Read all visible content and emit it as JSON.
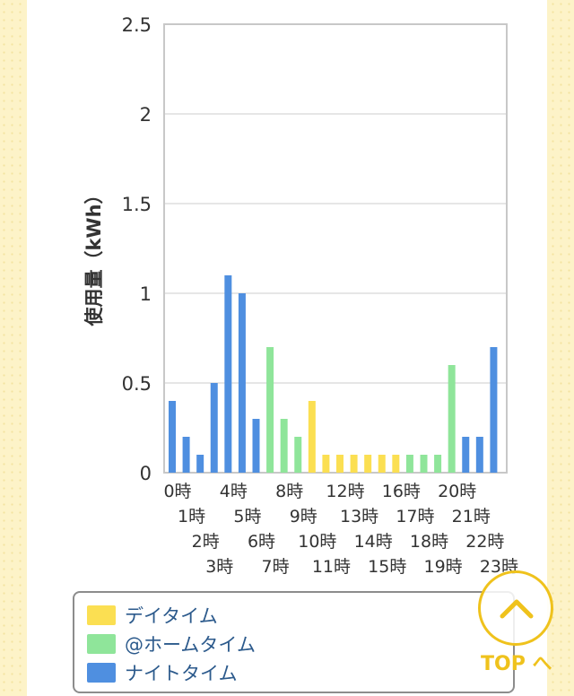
{
  "chart_data": {
    "type": "bar",
    "ylabel": "使用量（kWh）",
    "ylim": [
      0,
      2.5
    ],
    "yticks": [
      "0",
      "0.5",
      "1",
      "1.5",
      "2",
      "2.5"
    ],
    "ytick_values": [
      0,
      0.5,
      1,
      1.5,
      2,
      2.5
    ],
    "grid": true,
    "categories": [
      "0時",
      "1時",
      "2時",
      "3時",
      "4時",
      "5時",
      "6時",
      "7時",
      "8時",
      "9時",
      "10時",
      "11時",
      "12時",
      "13時",
      "14時",
      "15時",
      "16時",
      "17時",
      "18時",
      "19時",
      "20時",
      "21時",
      "22時",
      "23時"
    ],
    "values": [
      0.4,
      0.2,
      0.1,
      0.5,
      1.1,
      1.0,
      0.3,
      0.7,
      0.3,
      0.2,
      0.4,
      0.1,
      0.1,
      0.1,
      0.1,
      0.1,
      0.1,
      0.1,
      0.1,
      0.1,
      0.6,
      0.2,
      0.2,
      0.7
    ],
    "bar_series": [
      "night",
      "night",
      "night",
      "night",
      "night",
      "night",
      "night",
      "home",
      "home",
      "home",
      "day",
      "day",
      "day",
      "day",
      "day",
      "day",
      "day",
      "home",
      "home",
      "home",
      "home",
      "night",
      "night",
      "night"
    ],
    "series": [
      {
        "key": "day",
        "name": "デイタイム",
        "color": "#fbdf52"
      },
      {
        "key": "home",
        "name": "@ホームタイム",
        "color": "#8fe59a"
      },
      {
        "key": "night",
        "name": "ナイトタイム",
        "color": "#4f8fe0"
      }
    ],
    "legend_position": "bottom"
  },
  "top_button": {
    "label": "TOP へ",
    "icon": "chevron-up-icon",
    "color": "#efc21c"
  }
}
